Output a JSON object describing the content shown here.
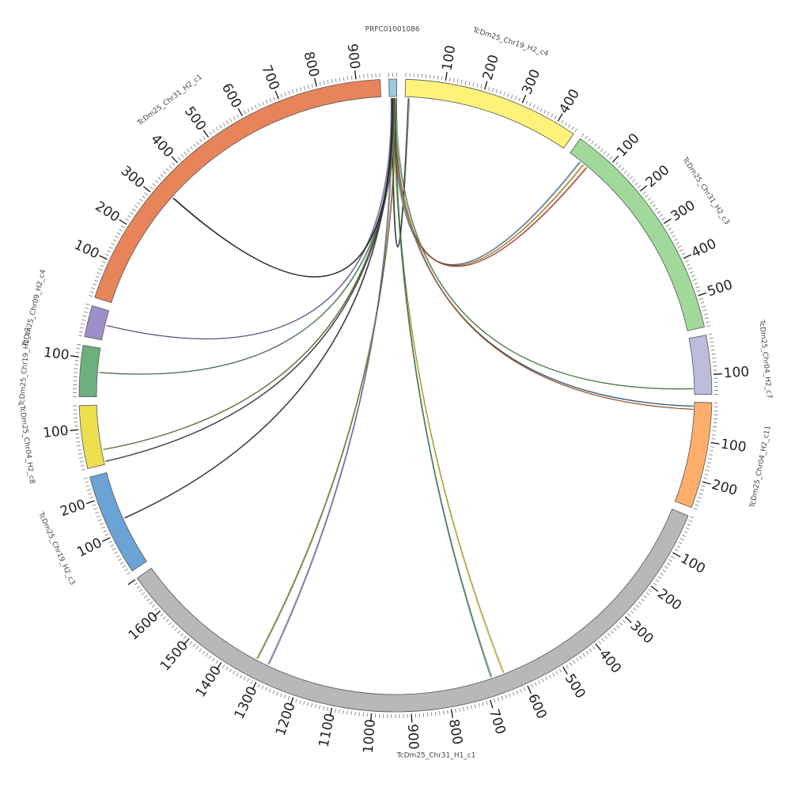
{
  "figure": {
    "ideograms": [
      {
        "name": "PRFC01001086",
        "size": 20,
        "color": "#9ECAE1",
        "ticks": [],
        "label_pos": "top"
      },
      {
        "name": "TcDm25_Chr19_H2_c4",
        "size": 450,
        "color": "#FFF27A",
        "ticks": [
          "100",
          "200",
          "300",
          "400"
        ]
      },
      {
        "name": "TcDm25_Chr31_H2_c3",
        "size": 580,
        "color": "#A1D99B",
        "ticks": [
          "100",
          "200",
          "300",
          "400",
          "500"
        ]
      },
      {
        "name": "TcDm25_Chr04_H2_c7",
        "size": 150,
        "color": "#BCBDDC",
        "ticks": [
          "100"
        ]
      },
      {
        "name": "TcDm25_Chr04_H2_c11",
        "size": 270,
        "color": "#FDAE6B",
        "ticks": [
          "100",
          "200"
        ]
      },
      {
        "name": "TcDm25_Chr31_H1_c1",
        "size": 1700,
        "color": "#B8B8B8",
        "ticks": [
          "100",
          "200",
          "300",
          "400",
          "500",
          "600",
          "700",
          "800",
          "900",
          "1000",
          "1100",
          "1200",
          "1300",
          "1400",
          "1500",
          "1600"
        ],
        "label_pos": "bottom"
      },
      {
        "name": "TcDm25_Chr19_H2_c3",
        "size": 260,
        "color": "#6BA3D6",
        "ticks": [
          "100",
          "200"
        ]
      },
      {
        "name": "TcDm25_Chr04_H2_c8",
        "size": 160,
        "color": "#EEDF4E",
        "ticks": [
          "100"
        ]
      },
      {
        "name": "TcDm25_Chr19_H2_c2",
        "size": 130,
        "color": "#6CB07E",
        "ticks": [
          "100"
        ]
      },
      {
        "name": "TcDm25_Chr09_H2_c4",
        "size": 80,
        "color": "#9E8FCB",
        "ticks": []
      },
      {
        "name": "TcDm25_Chr31_H2_c1",
        "size": 960,
        "color": "#E8845A",
        "ticks": [
          "100",
          "200",
          "300",
          "400",
          "500",
          "600",
          "700",
          "800",
          "900"
        ]
      }
    ],
    "links": [
      {
        "from": "PRFC01001086",
        "to": "TcDm25_Chr19_H2_c4",
        "color": "#222222"
      },
      {
        "from": "PRFC01001086",
        "to": "TcDm25_Chr31_H2_c3",
        "color": "#5B8DB8"
      },
      {
        "from": "PRFC01001086",
        "to": "TcDm25_Chr31_H2_c3",
        "color": "#C9A227"
      },
      {
        "from": "PRFC01001086",
        "to": "TcDm25_Chr31_H2_c3",
        "color": "#D1472F"
      },
      {
        "from": "PRFC01001086",
        "to": "TcDm25_Chr04_H2_c7",
        "color": "#5FA05F"
      },
      {
        "from": "PRFC01001086",
        "to": "TcDm25_Chr04_H2_c11",
        "color": "#2E6FA8"
      },
      {
        "from": "PRFC01001086",
        "to": "TcDm25_Chr04_H2_c11",
        "color": "#D9773A"
      },
      {
        "from": "PRFC01001086",
        "to": "TcDm25_Chr31_H1_c1",
        "color": "#D6C62A"
      },
      {
        "from": "PRFC01001086",
        "to": "TcDm25_Chr31_H1_c1",
        "color": "#3A7D5A"
      },
      {
        "from": "PRFC01001086",
        "to": "TcDm25_Chr31_H1_c1",
        "color": "#8A7D1E"
      },
      {
        "from": "PRFC01001086",
        "to": "TcDm25_Chr31_H1_c1",
        "color": "#7C6BB0"
      },
      {
        "from": "PRFC01001086",
        "to": "TcDm25_Chr19_H2_c3",
        "color": "#333333"
      },
      {
        "from": "PRFC01001086",
        "to": "TcDm25_Chr04_H2_c8",
        "color": "#6B8E3A"
      },
      {
        "from": "PRFC01001086",
        "to": "TcDm25_Chr04_H2_c8",
        "color": "#444444"
      },
      {
        "from": "PRFC01001086",
        "to": "TcDm25_Chr19_H2_c2",
        "color": "#5F8F6F"
      },
      {
        "from": "PRFC01001086",
        "to": "TcDm25_Chr09_H2_c4",
        "color": "#7E6EB8"
      },
      {
        "from": "PRFC01001086",
        "to": "TcDm25_Chr31_H2_c1",
        "color": "#111111"
      }
    ]
  }
}
